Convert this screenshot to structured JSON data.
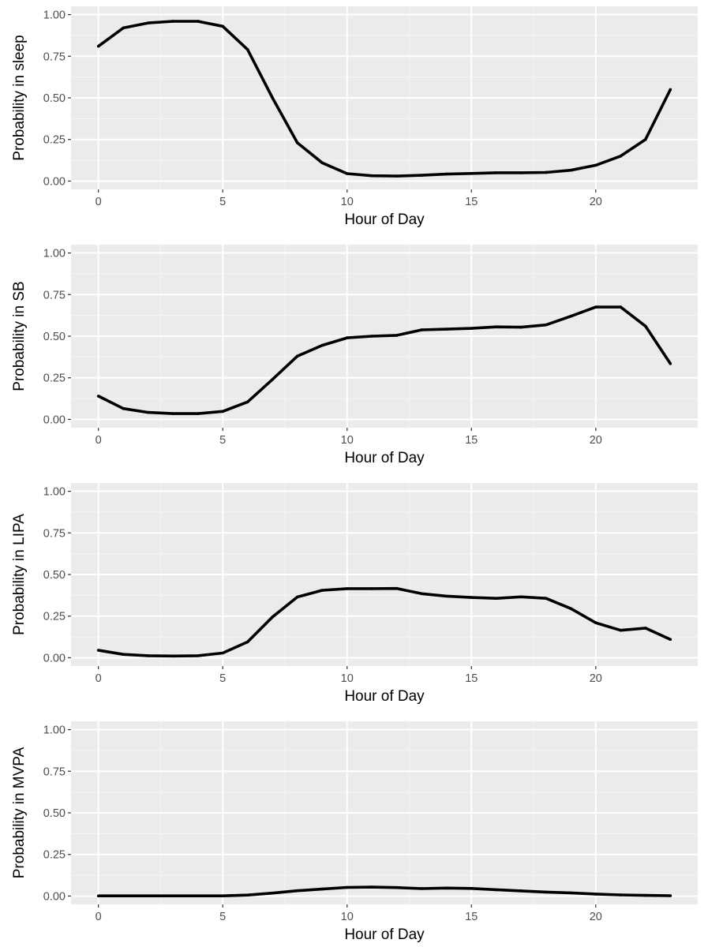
{
  "style": {
    "panel_background": "#ebebeb",
    "grid_major": "#ffffff",
    "grid_minor": "#f5f5f5",
    "line_color": "#000000",
    "tick_text_color": "#4d4d4d",
    "axis_title_color": "#000000"
  },
  "chart_data": [
    {
      "type": "line",
      "title": "",
      "xlabel": "Hour of Day",
      "ylabel": "Probability in sleep",
      "xlim": [
        -1.1,
        24.1
      ],
      "ylim": [
        -0.05,
        1.05
      ],
      "xticks": [
        0,
        5,
        10,
        15,
        20
      ],
      "yticks": [
        "0.00",
        "0.25",
        "0.50",
        "0.75",
        "1.00"
      ],
      "grid": true,
      "x": [
        0,
        1,
        2,
        3,
        4,
        5,
        6,
        7,
        8,
        9,
        10,
        11,
        12,
        13,
        14,
        15,
        16,
        17,
        18,
        19,
        20,
        21,
        22,
        23
      ],
      "series": [
        {
          "values": [
            0.81,
            0.92,
            0.95,
            0.96,
            0.96,
            0.93,
            0.79,
            0.5,
            0.23,
            0.11,
            0.045,
            0.032,
            0.03,
            0.035,
            0.042,
            0.046,
            0.05,
            0.05,
            0.052,
            0.065,
            0.095,
            0.15,
            0.25,
            0.55
          ]
        }
      ]
    },
    {
      "type": "line",
      "title": "",
      "xlabel": "Hour of Day",
      "ylabel": "Probability in SB",
      "xlim": [
        -1.1,
        24.1
      ],
      "ylim": [
        -0.05,
        1.05
      ],
      "xticks": [
        0,
        5,
        10,
        15,
        20
      ],
      "yticks": [
        "0.00",
        "0.25",
        "0.50",
        "0.75",
        "1.00"
      ],
      "grid": true,
      "x": [
        0,
        1,
        2,
        3,
        4,
        5,
        6,
        7,
        8,
        9,
        10,
        11,
        12,
        13,
        14,
        15,
        16,
        17,
        18,
        19,
        20,
        21,
        22,
        23
      ],
      "series": [
        {
          "values": [
            0.14,
            0.065,
            0.042,
            0.035,
            0.035,
            0.048,
            0.105,
            0.24,
            0.38,
            0.445,
            0.49,
            0.5,
            0.505,
            0.538,
            0.542,
            0.547,
            0.556,
            0.554,
            0.568,
            0.62,
            0.675,
            0.675,
            0.56,
            0.335
          ]
        }
      ]
    },
    {
      "type": "line",
      "title": "",
      "xlabel": "Hour of Day",
      "ylabel": "Probability in LIPA",
      "xlim": [
        -1.1,
        24.1
      ],
      "ylim": [
        -0.05,
        1.05
      ],
      "xticks": [
        0,
        5,
        10,
        15,
        20
      ],
      "yticks": [
        "0.00",
        "0.25",
        "0.50",
        "0.75",
        "1.00"
      ],
      "grid": true,
      "x": [
        0,
        1,
        2,
        3,
        4,
        5,
        6,
        7,
        8,
        9,
        10,
        11,
        12,
        13,
        14,
        15,
        16,
        17,
        18,
        19,
        20,
        21,
        22,
        23
      ],
      "series": [
        {
          "values": [
            0.045,
            0.02,
            0.012,
            0.01,
            0.012,
            0.028,
            0.095,
            0.245,
            0.365,
            0.405,
            0.415,
            0.415,
            0.416,
            0.385,
            0.37,
            0.362,
            0.357,
            0.366,
            0.357,
            0.295,
            0.21,
            0.165,
            0.178,
            0.11
          ]
        }
      ]
    },
    {
      "type": "line",
      "title": "",
      "xlabel": "Hour of Day",
      "ylabel": "Probability in MVPA",
      "xlim": [
        -1.1,
        24.1
      ],
      "ylim": [
        -0.05,
        1.05
      ],
      "xticks": [
        0,
        5,
        10,
        15,
        20
      ],
      "yticks": [
        "0.00",
        "0.25",
        "0.50",
        "0.75",
        "1.00"
      ],
      "grid": true,
      "x": [
        0,
        1,
        2,
        3,
        4,
        5,
        6,
        7,
        8,
        9,
        10,
        11,
        12,
        13,
        14,
        15,
        16,
        17,
        18,
        19,
        20,
        21,
        22,
        23
      ],
      "series": [
        {
          "values": [
            0.001,
            0.001,
            0.001,
            0.001,
            0.001,
            0.001,
            0.006,
            0.018,
            0.032,
            0.042,
            0.052,
            0.054,
            0.051,
            0.045,
            0.048,
            0.046,
            0.038,
            0.031,
            0.024,
            0.019,
            0.012,
            0.007,
            0.004,
            0.002
          ]
        }
      ]
    }
  ]
}
